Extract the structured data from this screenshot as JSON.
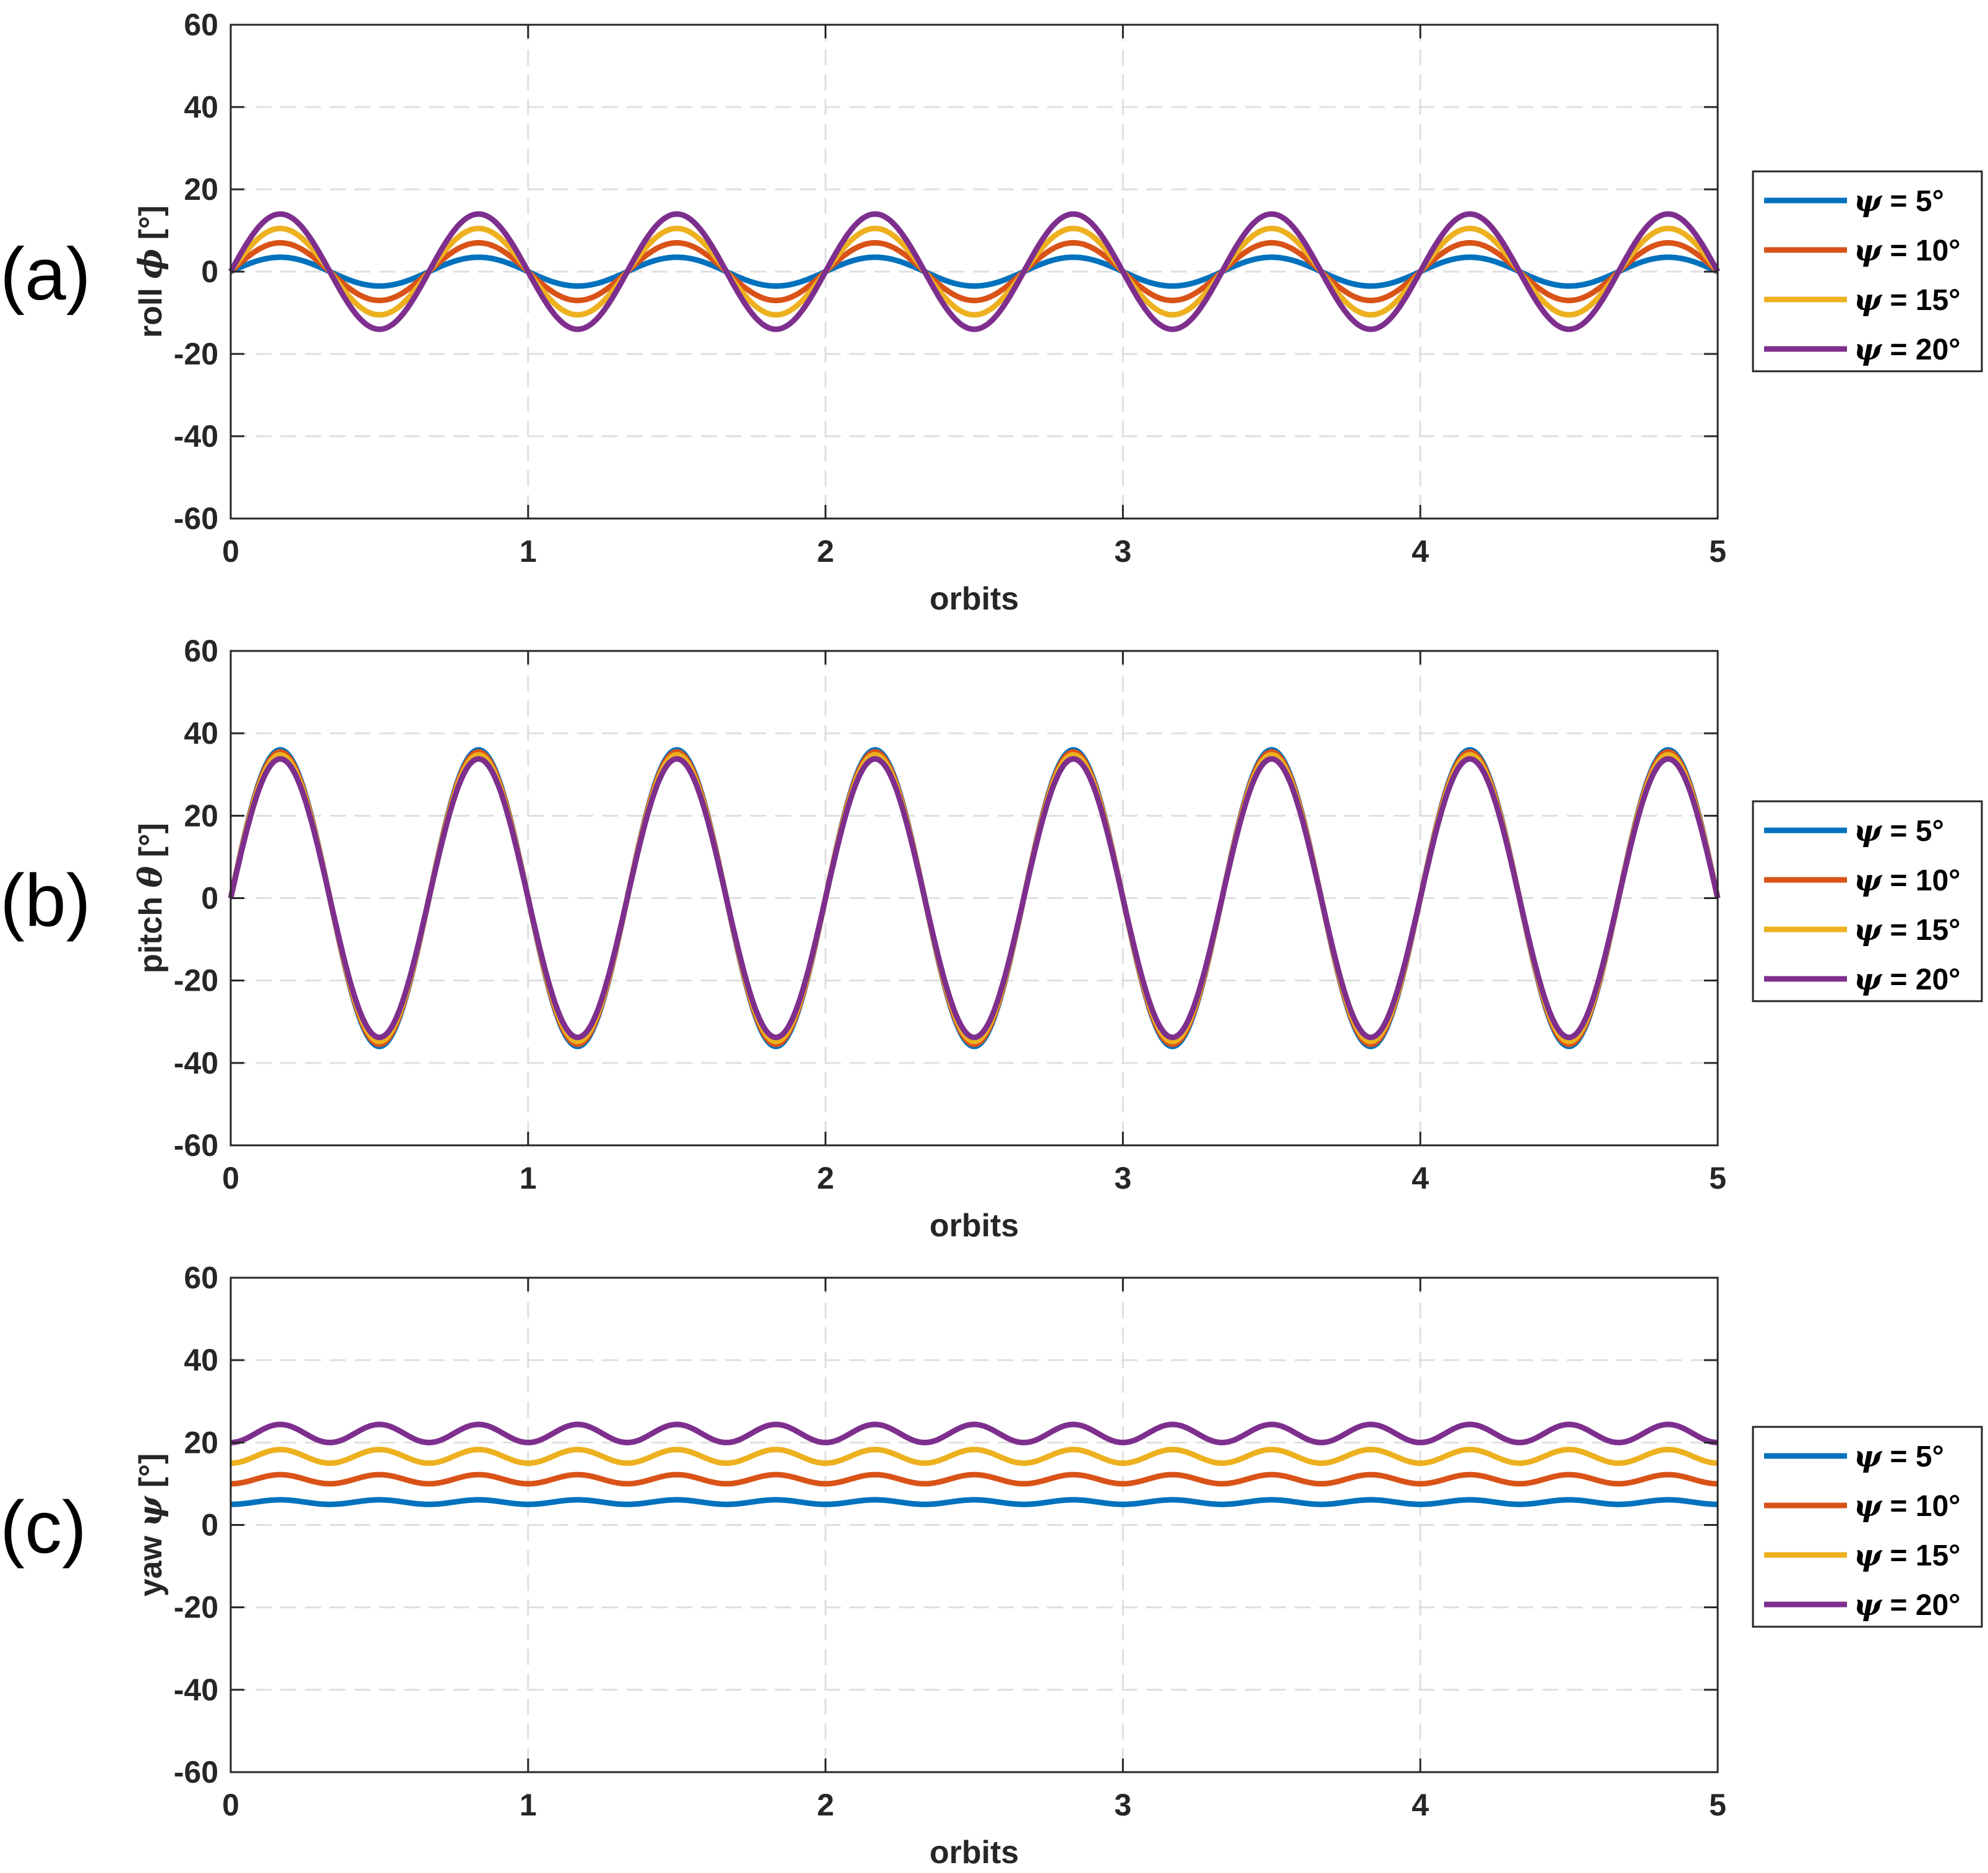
{
  "chart_data": [
    {
      "type": "line",
      "panel_label": "(a)",
      "ylabel_prefix": "roll ",
      "ylabel_symbol": "ϕ",
      "ylabel_unit": " [°]",
      "xlabel": "orbits",
      "xlim": [
        0,
        5
      ],
      "ylim": [
        -60,
        60
      ],
      "xticks": [
        0,
        1,
        2,
        3,
        4,
        5
      ],
      "yticks": [
        -60,
        -40,
        -20,
        0,
        20,
        40,
        60
      ],
      "grid": true,
      "legend_position": "right",
      "series": [
        {
          "name": "ψ = 5°",
          "symbol": "ψ",
          "label_rest": " = 5°",
          "color": "#0072BD",
          "model": {
            "kind": "sin",
            "offset": 0,
            "amplitude": 3.5,
            "periods_per_orbit": 1.5
          }
        },
        {
          "name": "ψ = 10°",
          "symbol": "ψ",
          "label_rest": " = 10°",
          "color": "#D95319",
          "model": {
            "kind": "sin",
            "offset": 0,
            "amplitude": 7,
            "periods_per_orbit": 1.5
          }
        },
        {
          "name": "ψ = 15°",
          "symbol": "ψ",
          "label_rest": " = 15°",
          "color": "#EDB120",
          "model": {
            "kind": "sin",
            "offset": 0,
            "amplitude": 10.5,
            "periods_per_orbit": 1.5
          }
        },
        {
          "name": "ψ = 20°",
          "symbol": "ψ",
          "label_rest": " = 20°",
          "color": "#7E2F8E",
          "model": {
            "kind": "sin",
            "offset": 0,
            "amplitude": 14,
            "periods_per_orbit": 1.5
          }
        }
      ]
    },
    {
      "type": "line",
      "panel_label": "(b)",
      "ylabel_prefix": "pitch ",
      "ylabel_symbol": "θ",
      "ylabel_unit": " [°]",
      "xlabel": "orbits",
      "xlim": [
        0,
        5
      ],
      "ylim": [
        -60,
        60
      ],
      "xticks": [
        0,
        1,
        2,
        3,
        4,
        5
      ],
      "yticks": [
        -60,
        -40,
        -20,
        0,
        20,
        40,
        60
      ],
      "grid": true,
      "legend_position": "right",
      "series": [
        {
          "name": "ψ = 5°",
          "symbol": "ψ",
          "label_rest": " = 5°",
          "color": "#0072BD",
          "model": {
            "kind": "sin",
            "offset": 0,
            "amplitude": 36,
            "periods_per_orbit": 1.5
          }
        },
        {
          "name": "ψ = 10°",
          "symbol": "ψ",
          "label_rest": " = 10°",
          "color": "#D95319",
          "model": {
            "kind": "sin",
            "offset": 0,
            "amplitude": 35.5,
            "periods_per_orbit": 1.5
          }
        },
        {
          "name": "ψ = 15°",
          "symbol": "ψ",
          "label_rest": " = 15°",
          "color": "#EDB120",
          "model": {
            "kind": "sin",
            "offset": 0,
            "amplitude": 34.8,
            "periods_per_orbit": 1.5
          }
        },
        {
          "name": "ψ = 20°",
          "symbol": "ψ",
          "label_rest": " = 20°",
          "color": "#7E2F8E",
          "model": {
            "kind": "sin",
            "offset": 0,
            "amplitude": 33.8,
            "periods_per_orbit": 1.5
          }
        }
      ]
    },
    {
      "type": "line",
      "panel_label": "(c)",
      "ylabel_prefix": "yaw ",
      "ylabel_symbol": "ψ",
      "ylabel_unit": " [°]",
      "xlabel": "orbits",
      "xlim": [
        0,
        5
      ],
      "ylim": [
        -60,
        60
      ],
      "xticks": [
        0,
        1,
        2,
        3,
        4,
        5
      ],
      "yticks": [
        -60,
        -40,
        -20,
        0,
        20,
        40,
        60
      ],
      "grid": true,
      "legend_position": "right",
      "series": [
        {
          "name": "ψ = 5°",
          "symbol": "ψ",
          "label_rest": " = 5°",
          "color": "#0072BD",
          "model": {
            "kind": "sin2",
            "offset": 5,
            "amplitude": 1.1,
            "periods_per_orbit": 1.5
          }
        },
        {
          "name": "ψ = 10°",
          "symbol": "ψ",
          "label_rest": " = 10°",
          "color": "#D95319",
          "model": {
            "kind": "sin2",
            "offset": 10,
            "amplitude": 2.2,
            "periods_per_orbit": 1.5
          }
        },
        {
          "name": "ψ = 15°",
          "symbol": "ψ",
          "label_rest": " = 15°",
          "color": "#EDB120",
          "model": {
            "kind": "sin2",
            "offset": 15,
            "amplitude": 3.3,
            "periods_per_orbit": 1.5
          }
        },
        {
          "name": "ψ = 20°",
          "symbol": "ψ",
          "label_rest": " = 20°",
          "color": "#7E2F8E",
          "model": {
            "kind": "sin2",
            "offset": 20,
            "amplitude": 4.4,
            "periods_per_orbit": 1.5
          }
        }
      ]
    }
  ]
}
